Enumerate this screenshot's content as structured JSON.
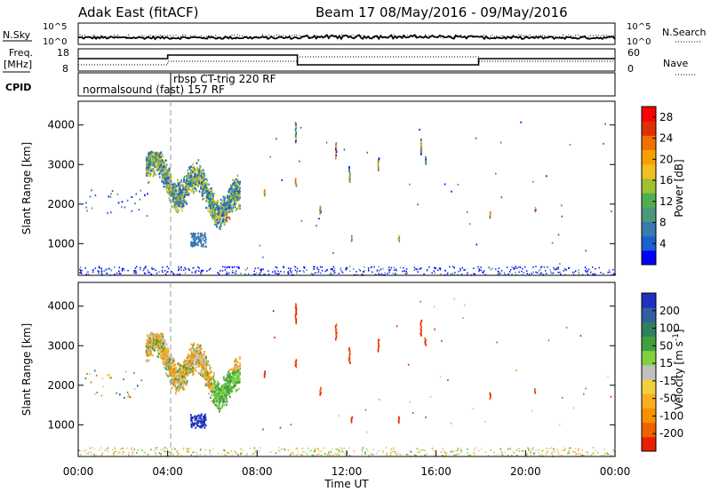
{
  "header": {
    "station": "Adak East (fitACF)",
    "beam_date": "Beam 17 08/May/2016 - 09/May/2016"
  },
  "noise_panel": {
    "left_label": "N.Sky",
    "right_label": "N.Search",
    "left_ticks": [
      "10^5",
      "10^0"
    ],
    "right_ticks": [
      "10^5",
      "10^0"
    ]
  },
  "freq_panel": {
    "left_label_1": "Freq.",
    "left_label_2": "[MHz]",
    "left_ticks": [
      "18",
      "8"
    ],
    "right_label": "Nave",
    "right_ticks": [
      "60",
      "0"
    ],
    "cpid_label": "CPID",
    "cpid_entries": [
      "normalsound (fast) 157 RF",
      "rbsp CT-trig 220 RF"
    ]
  },
  "chart_data": [
    {
      "type": "scatter",
      "panel": "power",
      "xlabel": "",
      "ylabel": "Slant Range [km]",
      "xlim": [
        0,
        24
      ],
      "ylim": [
        200,
        4600
      ],
      "y_ticks": [
        1000,
        2000,
        3000,
        4000
      ],
      "colorbar": {
        "label": "Power [dB]",
        "ticks": [
          "4",
          "8",
          "12",
          "16",
          "20",
          "24",
          "28"
        ],
        "range": [
          0,
          30
        ],
        "colors": [
          "#0000ff",
          "#1e5fd0",
          "#3a7ab0",
          "#4a9a7a",
          "#50b050",
          "#a0c030",
          "#f0c020",
          "#f8a000",
          "#f07000",
          "#e03000",
          "#ff0000"
        ]
      },
      "features": [
        {
          "name": "echo band",
          "time_start": 3.0,
          "time_end": 7.2,
          "range_start": 1300,
          "range_end": 3300
        },
        {
          "name": "near range clutter",
          "time_start": 0.0,
          "time_end": 24.0,
          "range_start": 200,
          "range_end": 400
        }
      ]
    },
    {
      "type": "scatter",
      "panel": "velocity",
      "xlabel": "Time UT",
      "ylabel": "Slant Range [km]",
      "xlim": [
        0,
        24
      ],
      "ylim": [
        200,
        4600
      ],
      "y_ticks": [
        1000,
        2000,
        3000,
        4000
      ],
      "x_ticks": [
        "00:00",
        "04:00",
        "08:00",
        "12:00",
        "16:00",
        "20:00",
        "00:00"
      ],
      "colorbar": {
        "label": "Velocity [m s^-1]",
        "ticks": [
          "200",
          "100",
          "50",
          "15",
          "-15",
          "-50",
          "-100",
          "-200"
        ],
        "colors": [
          "#2030c0",
          "#3060a0",
          "#308060",
          "#40a040",
          "#80d040",
          "#c0c0c0",
          "#f0d040",
          "#f8b020",
          "#f89000",
          "#f06000",
          "#e82000"
        ]
      },
      "features": [
        {
          "name": "echo band",
          "time_start": 3.0,
          "time_end": 7.2,
          "range_start": 1000,
          "range_end": 3300
        },
        {
          "name": "near range clutter",
          "time_start": 0.0,
          "time_end": 24.0,
          "range_start": 200,
          "range_end": 400
        }
      ]
    }
  ]
}
